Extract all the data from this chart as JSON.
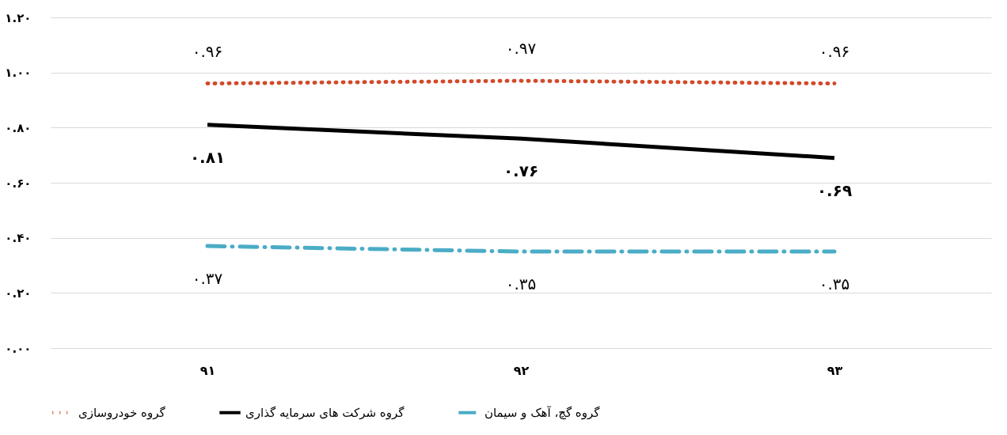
{
  "chart_data": {
    "type": "line",
    "categories": [
      "۹۱",
      "۹۲",
      "۹۳"
    ],
    "ylim": [
      0,
      1.2
    ],
    "yticks": [
      {
        "value": 0,
        "label": "۰.۰۰"
      },
      {
        "value": 0.2,
        "label": "۰.۲۰"
      },
      {
        "value": 0.4,
        "label": "۰.۴۰"
      },
      {
        "value": 0.6,
        "label": "۰.۶۰"
      },
      {
        "value": 0.8,
        "label": "۰.۸۰"
      },
      {
        "value": 1,
        "label": "۱.۰۰"
      },
      {
        "value": 1.2,
        "label": "۱.۲۰"
      }
    ],
    "grid": "y",
    "legend": "bottom",
    "marker": "none",
    "series": [
      {
        "name": "گروه خودروسازی",
        "color": "#d24a2a",
        "line_style": "dotted",
        "values": [
          0.96,
          0.97,
          0.96
        ],
        "value_labels": [
          "۰.۹۶",
          "۰.۹۷",
          "۰.۹۶"
        ]
      },
      {
        "name": "گروه شرکت های سرمایه گذاری",
        "color": "#000000",
        "line_style": "solid",
        "values": [
          0.81,
          0.76,
          0.69
        ],
        "value_labels": [
          "۰.۸۱",
          "۰.۷۶",
          "۰.۶۹"
        ]
      },
      {
        "name": "گروه گچ، آهک و سیمان",
        "color": "#4bacc6",
        "line_style": "dashed",
        "values": [
          0.37,
          0.35,
          0.35
        ],
        "value_labels": [
          "۰.۳۷",
          "۰.۳۵",
          "۰.۳۵"
        ]
      }
    ]
  }
}
